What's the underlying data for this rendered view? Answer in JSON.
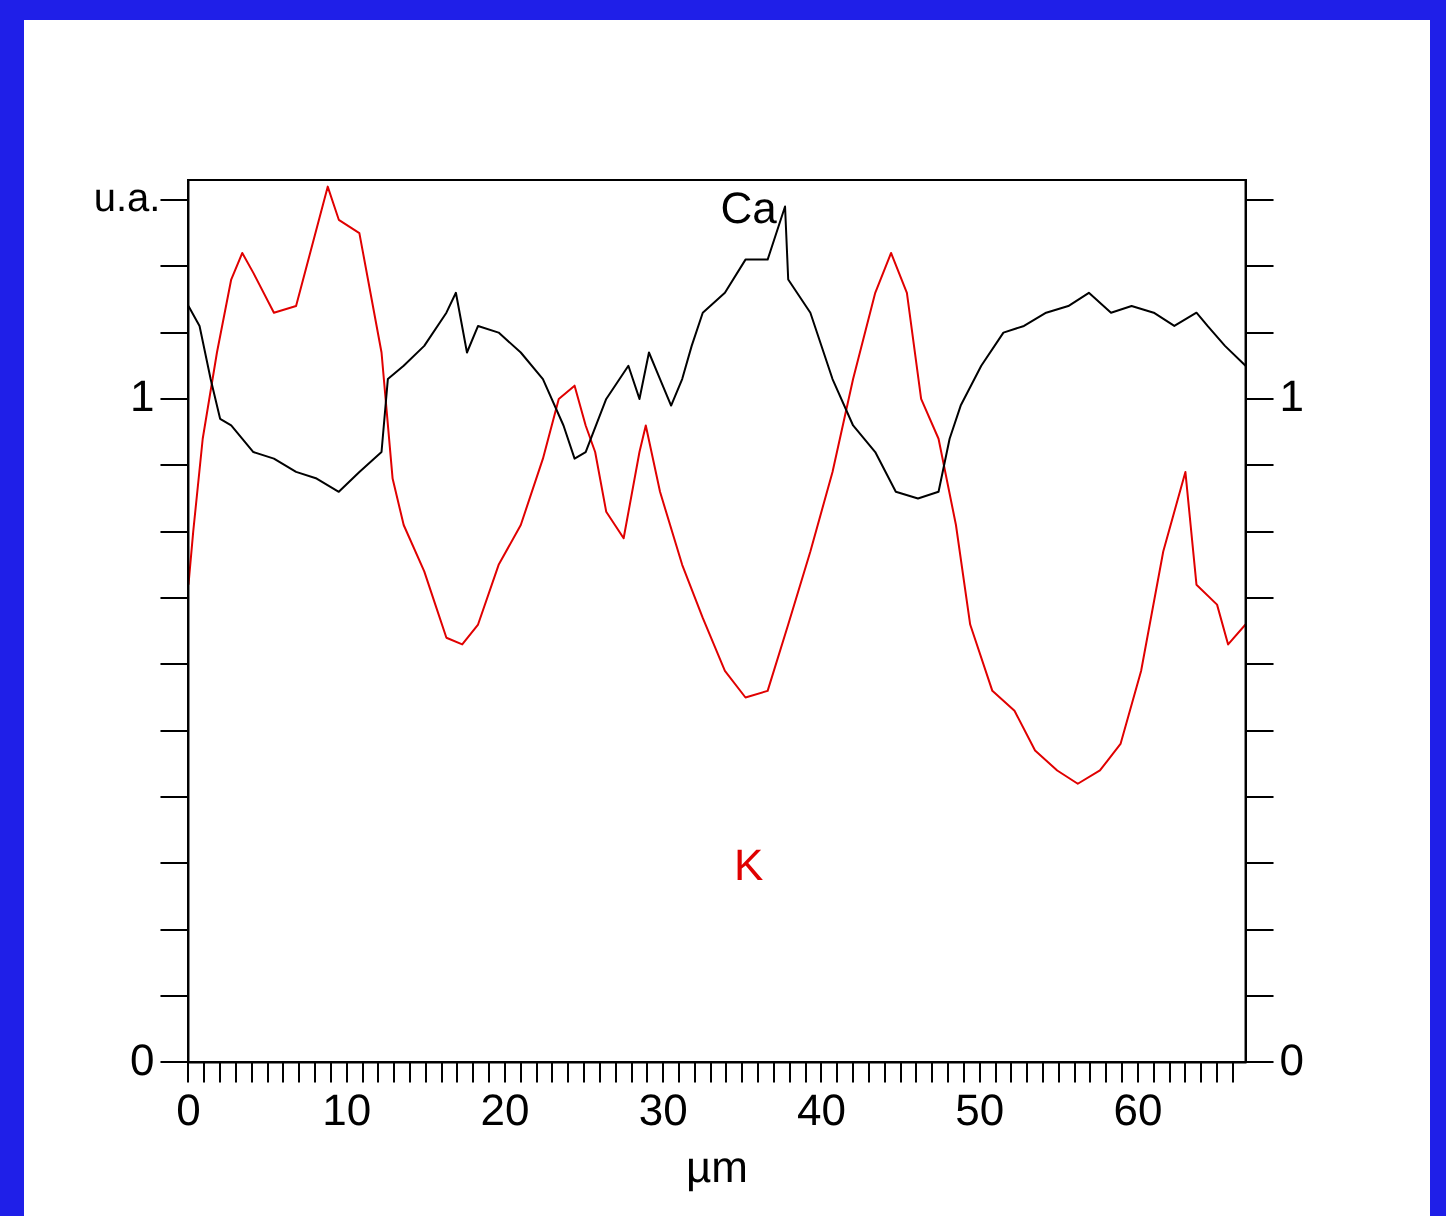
{
  "chart_data": {
    "type": "line",
    "xlabel": "µm",
    "ylabel": "u.a.",
    "x": [
      0,
      0.7,
      1.4,
      2,
      2.7,
      4.1,
      5.4,
      6.8,
      8.1,
      9.5,
      10.8,
      12.2,
      12.6,
      13.6,
      14.9,
      16.3,
      16.9,
      17.6,
      18.3,
      19.6,
      21,
      22.4,
      23.7,
      24.4,
      25.1,
      26.4,
      27.8,
      28.5,
      29.1,
      29.8,
      30.5,
      31.2,
      31.8,
      32.5,
      33.9,
      35.2,
      36.6,
      37.7,
      37.9,
      39.3,
      40.7,
      42,
      43.4,
      44.7,
      46.1,
      47.4,
      48.1,
      48.8,
      50.1,
      51.5,
      52.8,
      54.2,
      55.6,
      56.9,
      58.3,
      59.6,
      61,
      62.3,
      63.7,
      64.4,
      65.5,
      66.8
    ],
    "series": [
      {
        "name": "Ca",
        "color": "#000000",
        "values": [
          1.14,
          1.11,
          1.03,
          0.97,
          0.96,
          0.92,
          0.91,
          0.89,
          0.88,
          0.86,
          0.89,
          0.92,
          1.03,
          1.05,
          1.08,
          1.13,
          1.16,
          1.07,
          1.11,
          1.1,
          1.07,
          1.03,
          0.96,
          0.91,
          0.92,
          1,
          1.05,
          1,
          1.07,
          1.03,
          0.99,
          1.03,
          1.08,
          1.13,
          1.16,
          1.21,
          1.21,
          1.29,
          1.18,
          1.13,
          1.03,
          0.96,
          0.92,
          0.86,
          0.85,
          0.86,
          0.94,
          0.99,
          1.05,
          1.1,
          1.11,
          1.13,
          1.14,
          1.16,
          1.13,
          1.14,
          1.13,
          1.11,
          1.13,
          1.11,
          1.08,
          1.05
        ]
      },
      {
        "name": "K",
        "color": "#e00000",
        "x": [
          0,
          0.3,
          0.9,
          1.8,
          2.7,
          3.4,
          4.1,
          5.4,
          6.8,
          8.8,
          9.5,
          10.8,
          11.5,
          12.2,
          12.9,
          13.6,
          14.9,
          15.6,
          16.3,
          17.3,
          18.3,
          19.6,
          21,
          22.4,
          23.4,
          24.4,
          25.1,
          25.7,
          26.4,
          27.5,
          28.5,
          28.9,
          29.8,
          31.2,
          32.5,
          33.9,
          35.2,
          36.6,
          37.9,
          39.3,
          40.7,
          42,
          43.4,
          44.4,
          45.4,
          46.3,
          47.4,
          48.5,
          49.4,
          50.8,
          52.2,
          53.5,
          54.9,
          56.2,
          57.6,
          58.9,
          60.2,
          61.6,
          63,
          63.7,
          65,
          65.7,
          66.8
        ],
        "values": [
          0.72,
          0.8,
          0.94,
          1.07,
          1.18,
          1.22,
          1.19,
          1.13,
          1.14,
          1.32,
          1.27,
          1.25,
          1.16,
          1.07,
          0.88,
          0.81,
          0.74,
          0.69,
          0.64,
          0.63,
          0.66,
          0.75,
          0.81,
          0.91,
          1,
          1.02,
          0.96,
          0.92,
          0.83,
          0.79,
          0.92,
          0.96,
          0.86,
          0.75,
          0.67,
          0.59,
          0.55,
          0.56,
          0.66,
          0.77,
          0.89,
          1.03,
          1.16,
          1.22,
          1.16,
          1,
          0.94,
          0.81,
          0.66,
          0.56,
          0.53,
          0.47,
          0.44,
          0.42,
          0.44,
          0.48,
          0.59,
          0.77,
          0.89,
          0.72,
          0.69,
          0.63,
          0.66
        ]
      }
    ],
    "xlim": [
      0,
      66.8
    ],
    "xticks": [
      0,
      {
        "value": 1,
        "label": null
      },
      {
        "value": 2,
        "label": null
      },
      {
        "value": 3,
        "label": null
      },
      {
        "value": 4,
        "label": null
      },
      {
        "value": 5,
        "label": null
      },
      {
        "value": 6,
        "label": null
      },
      {
        "value": 7,
        "label": null
      },
      {
        "value": 8,
        "label": null
      },
      {
        "value": 9,
        "label": null
      },
      10,
      {
        "value": 11,
        "label": null
      },
      {
        "value": 12,
        "label": null
      },
      {
        "value": 13,
        "label": null
      },
      {
        "value": 14,
        "label": null
      },
      {
        "value": 15,
        "label": null
      },
      {
        "value": 16,
        "label": null
      },
      {
        "value": 17,
        "label": null
      },
      {
        "value": 18,
        "label": null
      },
      {
        "value": 19,
        "label": null
      },
      20,
      {
        "value": 21,
        "label": null
      },
      {
        "value": 22,
        "label": null
      },
      {
        "value": 23,
        "label": null
      },
      {
        "value": 24,
        "label": null
      },
      {
        "value": 25,
        "label": null
      },
      {
        "value": 26,
        "label": null
      },
      {
        "value": 27,
        "label": null
      },
      {
        "value": 28,
        "label": null
      },
      {
        "value": 29,
        "label": null
      },
      30,
      {
        "value": 31,
        "label": null
      },
      {
        "value": 32,
        "label": null
      },
      {
        "value": 33,
        "label": null
      },
      {
        "value": 34,
        "label": null
      },
      {
        "value": 35,
        "label": null
      },
      {
        "value": 36,
        "label": null
      },
      {
        "value": 37,
        "label": null
      },
      {
        "value": 38,
        "label": null
      },
      {
        "value": 39,
        "label": null
      },
      40,
      {
        "value": 41,
        "label": null
      },
      {
        "value": 42,
        "label": null
      },
      {
        "value": 43,
        "label": null
      },
      {
        "value": 44,
        "label": null
      },
      {
        "value": 45,
        "label": null
      },
      {
        "value": 46,
        "label": null
      },
      {
        "value": 47,
        "label": null
      },
      {
        "value": 48,
        "label": null
      },
      {
        "value": 49,
        "label": null
      },
      50,
      {
        "value": 51,
        "label": null
      },
      {
        "value": 52,
        "label": null
      },
      {
        "value": 53,
        "label": null
      },
      {
        "value": 54,
        "label": null
      },
      {
        "value": 55,
        "label": null
      },
      {
        "value": 56,
        "label": null
      },
      {
        "value": 57,
        "label": null
      },
      {
        "value": 58,
        "label": null
      },
      {
        "value": 59,
        "label": null
      },
      60,
      {
        "value": 61,
        "label": null
      },
      {
        "value": 62,
        "label": null
      },
      {
        "value": 63,
        "label": null
      },
      {
        "value": 64,
        "label": null
      },
      {
        "value": 65,
        "label": null
      },
      {
        "value": 66,
        "label": null
      }
    ],
    "ylim": [
      0,
      1.33
    ],
    "yticks": [
      0,
      {
        "value": 0.1,
        "label": null
      },
      {
        "value": 0.2,
        "label": null
      },
      {
        "value": 0.3,
        "label": null
      },
      {
        "value": 0.4,
        "label": null
      },
      {
        "value": 0.5,
        "label": null
      },
      {
        "value": 0.6,
        "label": null
      },
      {
        "value": 0.7,
        "label": null
      },
      {
        "value": 0.8,
        "label": null
      },
      {
        "value": 0.9,
        "label": null
      },
      1,
      {
        "value": 1.1,
        "label": null
      },
      {
        "value": 1.2,
        "label": null
      },
      {
        "value": 1.3,
        "label": null
      }
    ],
    "y2lim": [
      0,
      1.33
    ],
    "y2ticks": [
      0,
      {
        "value": 0.1,
        "label": null
      },
      {
        "value": 0.2,
        "label": null
      },
      {
        "value": 0.3,
        "label": null
      },
      {
        "value": 0.4,
        "label": null
      },
      {
        "value": 0.5,
        "label": null
      },
      {
        "value": 0.6,
        "label": null
      },
      {
        "value": 0.7,
        "label": null
      },
      {
        "value": 0.8,
        "label": null
      },
      {
        "value": 0.9,
        "label": null
      },
      1,
      {
        "value": 1.1,
        "label": null
      },
      {
        "value": 1.2,
        "label": null
      },
      {
        "value": 1.3,
        "label": null
      }
    ],
    "grid": false,
    "legend": false,
    "marker": "none",
    "line_style": "solid"
  }
}
